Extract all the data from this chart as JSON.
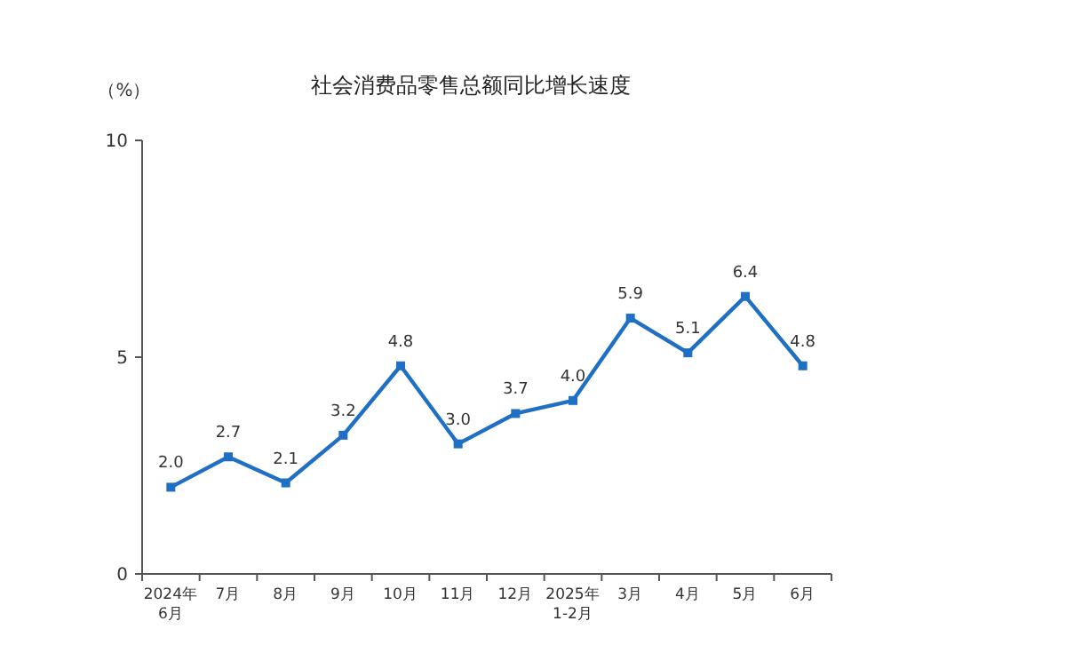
{
  "chart_data": {
    "type": "line",
    "title": "社会消费品零售总额同比增长速度",
    "ylabel": "（%）",
    "categories": [
      "2024年\n6月",
      "7月",
      "8月",
      "9月",
      "10月",
      "11月",
      "12月",
      "2025年\n1-2月",
      "3月",
      "4月",
      "5月",
      "6月"
    ],
    "values": [
      2.0,
      2.7,
      2.1,
      3.2,
      4.8,
      3.0,
      3.7,
      4.0,
      5.9,
      5.1,
      6.4,
      4.8
    ],
    "value_labels": [
      "2.0",
      "2.7",
      "2.1",
      "3.2",
      "4.8",
      "3.0",
      "3.7",
      "4.0",
      "5.9",
      "5.1",
      "6.4",
      "4.8"
    ],
    "color": "#1f6fc5",
    "marker": "square",
    "line_style": "solid",
    "ylim": [
      0,
      10
    ],
    "yticks": [
      0,
      5,
      10
    ]
  }
}
